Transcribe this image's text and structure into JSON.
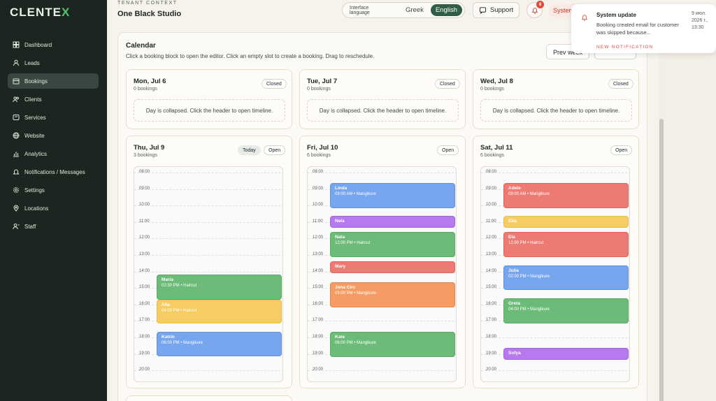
{
  "app": {
    "logo_prefix": "CLENTE",
    "logo_x": "X"
  },
  "sidebar": {
    "items": [
      {
        "label": "Dashboard",
        "icon": "grid-icon"
      },
      {
        "label": "Leads",
        "icon": "user-icon"
      },
      {
        "label": "Bookings",
        "icon": "calendar-icon",
        "active": true
      },
      {
        "label": "Clients",
        "icon": "users-icon"
      },
      {
        "label": "Services",
        "icon": "layers-icon"
      },
      {
        "label": "Website",
        "icon": "globe-icon"
      },
      {
        "label": "Analytics",
        "icon": "chart-icon"
      },
      {
        "label": "Notifications / Messages",
        "icon": "bell-icon"
      },
      {
        "label": "Settings",
        "icon": "gear-icon"
      },
      {
        "label": "Locations",
        "icon": "pin-icon"
      },
      {
        "label": "Staff",
        "icon": "staff-icon"
      }
    ]
  },
  "header": {
    "tenant_label": "TENANT CONTEXT",
    "tenant_name": "One Black Studio",
    "lang_label": "Interface language",
    "lang_options": [
      "Greek",
      "English"
    ],
    "lang_selected": "English",
    "support_label": "Support",
    "bell_count": "8",
    "system_label": "System"
  },
  "calendar": {
    "title": "Calendar",
    "subtitle": "Click a booking block to open the editor. Click an empty slot to create a booking. Drag to reschedule.",
    "prev_label": "Prev week",
    "hours": [
      "08:00",
      "09:00",
      "10:00",
      "11:00",
      "12:00",
      "13:00",
      "14:00",
      "15:00",
      "16:00",
      "17:00",
      "18:00",
      "19:00",
      "20:00"
    ],
    "days": [
      {
        "title": "Mon, Jul 6",
        "count": "0 bookings",
        "status": "Closed",
        "collapsed_text": "Day is collapsed. Click the header to open timeline."
      },
      {
        "title": "Tue, Jul 7",
        "count": "0 bookings",
        "status": "Closed",
        "collapsed_text": "Day is collapsed. Click the header to open timeline."
      },
      {
        "title": "Wed, Jul 8",
        "count": "0 bookings",
        "status": "Closed",
        "collapsed_text": "Day is collapsed. Click the header to open timeline."
      },
      {
        "title": "Thu, Jul 9",
        "count": "3 bookings",
        "status": "Open",
        "today": "Today",
        "bookings": [
          {
            "name": "Maria",
            "detail": "02:30 PM • Haircut",
            "color": "green"
          },
          {
            "name": "Alla",
            "detail": "04:00 PM • Haircut",
            "color": "yellow"
          },
          {
            "name": "Katrin",
            "detail": "06:00 PM • Mangikure",
            "color": "blue"
          }
        ]
      },
      {
        "title": "Fri, Jul 10",
        "count": "6 bookings",
        "status": "Open",
        "bookings": [
          {
            "name": "Linda",
            "detail": "09:00 AM • Mangikure",
            "color": "blue"
          },
          {
            "name": "Nela",
            "detail": "",
            "color": "purple"
          },
          {
            "name": "Nata",
            "detail": "12:00 PM • Haircut",
            "color": "green"
          },
          {
            "name": "Mary",
            "detail": "",
            "color": "red"
          },
          {
            "name": "Jana Circ",
            "detail": "03:00 PM • Mangikure",
            "color": "orange"
          },
          {
            "name": "Kate",
            "detail": "06:00 PM • Mangikure",
            "color": "green"
          }
        ]
      },
      {
        "title": "Sat, Jul 11",
        "count": "6 bookings",
        "status": "Open",
        "bookings": [
          {
            "name": "Adele",
            "detail": "09:00 AM • Mangikure",
            "color": "red"
          },
          {
            "name": "Ella",
            "detail": "",
            "color": "yellow"
          },
          {
            "name": "Ela",
            "detail": "12:00 PM • Haircut",
            "color": "red"
          },
          {
            "name": "Julia",
            "detail": "02:00 PM • Mangikure",
            "color": "blue"
          },
          {
            "name": "Greta",
            "detail": "04:00 PM • Mangikure",
            "color": "green"
          },
          {
            "name": "Sofya",
            "detail": "",
            "color": "purple"
          }
        ]
      }
    ]
  },
  "toast": {
    "title": "System update",
    "body": "Booking created email for customer was skipped because...",
    "date": "9 июл. 2026 г., 13:30",
    "tag": "NEW NOTIFICATION"
  }
}
